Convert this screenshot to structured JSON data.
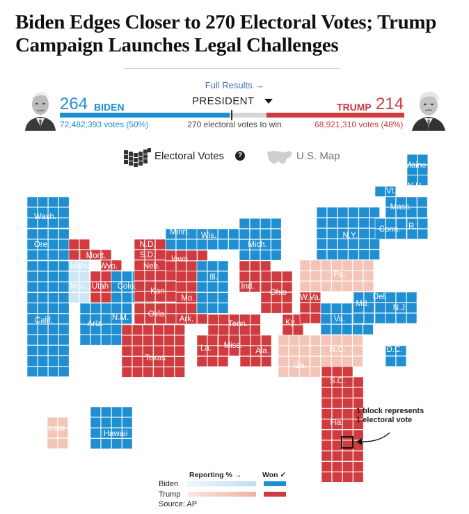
{
  "headline": "Biden Edges Closer to 270 Electoral Votes; Trump Campaign Launches Legal Challenges",
  "full_results": "Full Results →",
  "race_selector": "PRESIDENT",
  "biden": {
    "ev": "264",
    "name": "BIDEN",
    "popular": "72,482,393 votes (50%)"
  },
  "trump": {
    "ev": "214",
    "name": "TRUMP",
    "popular": "68,921,310 votes (48%)"
  },
  "threshold": "270 electoral votes to win",
  "toggles": {
    "electoral": "Electoral Votes",
    "help": "?",
    "usmap": "U.S. Map"
  },
  "annotation": {
    "line1": "1 block represents",
    "line2": "1 electoral vote"
  },
  "legend": {
    "reporting": "Reporting % →",
    "won": "Won ✓",
    "biden": "Biden",
    "trump": "Trump",
    "source": "Source: AP"
  },
  "colors": {
    "biden": "#1f8fd2",
    "trump": "#cf3b3f",
    "biden_partial": "#cfe6f5",
    "trump_partial": "#f4c7b8",
    "undecided": "#d5d5d5"
  },
  "map": {
    "states": [
      {
        "name": "Wash.",
        "status": "biden"
      },
      {
        "name": "Ore.",
        "status": "biden"
      },
      {
        "name": "Calif.",
        "status": "biden"
      },
      {
        "name": "Nev.",
        "status": "biden_partial"
      },
      {
        "name": "Idaho",
        "status": "trump"
      },
      {
        "name": "Mont.",
        "status": "trump"
      },
      {
        "name": "Wyo.",
        "status": "trump"
      },
      {
        "name": "Utah",
        "status": "trump"
      },
      {
        "name": "Colo.",
        "status": "biden"
      },
      {
        "name": "Ariz.",
        "status": "biden"
      },
      {
        "name": "N.M.",
        "status": "biden"
      },
      {
        "name": "N.D.",
        "status": "trump"
      },
      {
        "name": "S.D.",
        "status": "trump"
      },
      {
        "name": "Neb.",
        "status": "trump"
      },
      {
        "name": "Kan.",
        "status": "trump"
      },
      {
        "name": "Okla.",
        "status": "trump"
      },
      {
        "name": "Texas",
        "status": "trump"
      },
      {
        "name": "Minn.",
        "status": "biden"
      },
      {
        "name": "Iowa",
        "status": "trump"
      },
      {
        "name": "Mo.",
        "status": "trump"
      },
      {
        "name": "Ark.",
        "status": "trump"
      },
      {
        "name": "La.",
        "status": "trump"
      },
      {
        "name": "Wis.",
        "status": "biden"
      },
      {
        "name": "Ill.",
        "status": "biden"
      },
      {
        "name": "Mich.",
        "status": "biden"
      },
      {
        "name": "Ind.",
        "status": "trump"
      },
      {
        "name": "Ohio",
        "status": "trump"
      },
      {
        "name": "Ky.",
        "status": "trump"
      },
      {
        "name": "Tenn.",
        "status": "trump"
      },
      {
        "name": "Miss.",
        "status": "trump"
      },
      {
        "name": "Ala.",
        "status": "trump"
      },
      {
        "name": "Ga.",
        "status": "trump_partial"
      },
      {
        "name": "Fla.",
        "status": "trump"
      },
      {
        "name": "S.C.",
        "status": "trump"
      },
      {
        "name": "N.C.",
        "status": "trump_partial"
      },
      {
        "name": "Va.",
        "status": "biden"
      },
      {
        "name": "W.Va.",
        "status": "trump"
      },
      {
        "name": "Pa.",
        "status": "trump_partial"
      },
      {
        "name": "Md.",
        "status": "biden"
      },
      {
        "name": "Del.",
        "status": "biden"
      },
      {
        "name": "N.J.",
        "status": "biden"
      },
      {
        "name": "N.Y.",
        "status": "biden"
      },
      {
        "name": "Conn.",
        "status": "biden"
      },
      {
        "name": "R.I.",
        "status": "biden"
      },
      {
        "name": "Mass.",
        "status": "biden"
      },
      {
        "name": "Vt.",
        "status": "biden"
      },
      {
        "name": "N.H.",
        "status": "biden"
      },
      {
        "name": "Maine",
        "status": "biden"
      },
      {
        "name": "D.C.",
        "status": "biden"
      },
      {
        "name": "Alaska",
        "status": "trump_partial"
      },
      {
        "name": "Hawaii",
        "status": "biden"
      }
    ]
  }
}
